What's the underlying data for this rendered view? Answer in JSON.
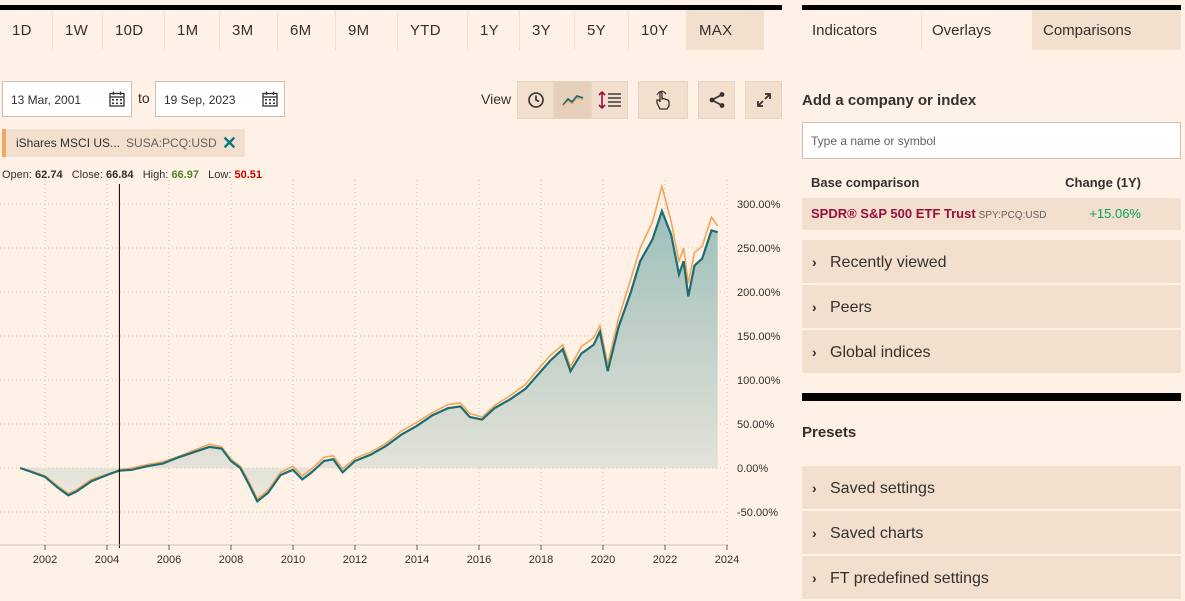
{
  "ranges": [
    {
      "label": "1D"
    },
    {
      "label": "1W"
    },
    {
      "label": "10D"
    },
    {
      "label": "1M"
    },
    {
      "label": "3M"
    },
    {
      "label": "6M"
    },
    {
      "label": "9M"
    },
    {
      "label": "YTD"
    },
    {
      "label": "1Y"
    },
    {
      "label": "3Y"
    },
    {
      "label": "5Y"
    },
    {
      "label": "10Y"
    },
    {
      "label": "MAX"
    }
  ],
  "active_range": "MAX",
  "side_tabs": [
    {
      "label": "Indicators"
    },
    {
      "label": "Overlays"
    },
    {
      "label": "Comparisons"
    }
  ],
  "date_from": "13 Mar, 2001",
  "date_to_label": "to",
  "date_to": "19 Sep, 2023",
  "view_label": "View",
  "chip": {
    "name": "iShares MSCI US...",
    "symbol": "SUSA:PCQ:USD",
    "remove_icon": "close-icon"
  },
  "ohlc": {
    "open_label": "Open:",
    "open": "62.74",
    "close_label": "Close:",
    "close": "66.84",
    "high_label": "High:",
    "high": "66.97",
    "low_label": "Low:",
    "low": "50.51"
  },
  "colors": {
    "primary_series": "#1d6d72",
    "comparison_series": "#f2a65a",
    "high": "#4b8a2a",
    "low": "#cc0000",
    "accent": "#990f3d",
    "positive": "#09a25c"
  },
  "comparisons": {
    "title": "Add a company or index",
    "search_placeholder": "Type a name or symbol",
    "col_base": "Base comparison",
    "col_change": "Change (1Y)",
    "base": {
      "name": "SPDR® S&P 500 ETF Trust",
      "symbol": "SPY:PCQ:USD",
      "change": "+15.06%"
    },
    "sections": [
      {
        "label": "Recently viewed"
      },
      {
        "label": "Peers"
      },
      {
        "label": "Global indices"
      }
    ]
  },
  "presets": {
    "title": "Presets",
    "items": [
      {
        "label": "Saved settings"
      },
      {
        "label": "Saved charts"
      },
      {
        "label": "FT predefined settings"
      }
    ]
  },
  "chart_data": {
    "type": "line",
    "x_ticks": [
      "2002",
      "2004",
      "2006",
      "2008",
      "2010",
      "2012",
      "2014",
      "2016",
      "2018",
      "2020",
      "2022",
      "2024"
    ],
    "y_ticks": [
      "300.00%",
      "250.00%",
      "200.00%",
      "150.00%",
      "100.00%",
      "50.00%",
      "0.00%",
      "-50.00%"
    ],
    "ylim": [
      -60,
      320
    ],
    "xlim": [
      2001.2,
      2024.3
    ],
    "cursor_x": 2004.4,
    "series": [
      {
        "name": "iShares MSCI US...",
        "values": [
          [
            2001.2,
            0
          ],
          [
            2001.6,
            -5
          ],
          [
            2002.0,
            -10
          ],
          [
            2002.4,
            -22
          ],
          [
            2002.75,
            -31
          ],
          [
            2003.0,
            -27
          ],
          [
            2003.5,
            -15
          ],
          [
            2004.0,
            -8
          ],
          [
            2004.4,
            -3
          ],
          [
            2004.8,
            -2
          ],
          [
            2005.3,
            2
          ],
          [
            2005.8,
            5
          ],
          [
            2006.3,
            12
          ],
          [
            2006.8,
            18
          ],
          [
            2007.3,
            24
          ],
          [
            2007.7,
            22
          ],
          [
            2008.0,
            8
          ],
          [
            2008.3,
            0
          ],
          [
            2008.6,
            -20
          ],
          [
            2008.85,
            -38
          ],
          [
            2009.2,
            -28
          ],
          [
            2009.6,
            -8
          ],
          [
            2010.0,
            -2
          ],
          [
            2010.3,
            -13
          ],
          [
            2010.6,
            -5
          ],
          [
            2011.0,
            8
          ],
          [
            2011.3,
            10
          ],
          [
            2011.6,
            -5
          ],
          [
            2012.0,
            8
          ],
          [
            2012.5,
            15
          ],
          [
            2013.0,
            25
          ],
          [
            2013.5,
            38
          ],
          [
            2014.0,
            48
          ],
          [
            2014.5,
            60
          ],
          [
            2015.0,
            68
          ],
          [
            2015.4,
            70
          ],
          [
            2015.7,
            58
          ],
          [
            2016.1,
            55
          ],
          [
            2016.5,
            68
          ],
          [
            2017.0,
            78
          ],
          [
            2017.5,
            90
          ],
          [
            2018.0,
            110
          ],
          [
            2018.3,
            122
          ],
          [
            2018.7,
            135
          ],
          [
            2018.95,
            110
          ],
          [
            2019.3,
            130
          ],
          [
            2019.7,
            140
          ],
          [
            2019.9,
            155
          ],
          [
            2020.15,
            110
          ],
          [
            2020.5,
            160
          ],
          [
            2020.9,
            200
          ],
          [
            2021.2,
            235
          ],
          [
            2021.6,
            260
          ],
          [
            2021.9,
            292
          ],
          [
            2022.2,
            265
          ],
          [
            2022.45,
            220
          ],
          [
            2022.6,
            235
          ],
          [
            2022.75,
            195
          ],
          [
            2022.95,
            230
          ],
          [
            2023.2,
            238
          ],
          [
            2023.5,
            270
          ],
          [
            2023.7,
            268
          ]
        ]
      },
      {
        "name": "SPDR® S&P 500 ETF Trust",
        "values": [
          [
            2001.2,
            0
          ],
          [
            2001.6,
            -4
          ],
          [
            2002.0,
            -9
          ],
          [
            2002.4,
            -20
          ],
          [
            2002.75,
            -29
          ],
          [
            2003.0,
            -25
          ],
          [
            2003.5,
            -13
          ],
          [
            2004.0,
            -7
          ],
          [
            2004.4,
            -2
          ],
          [
            2004.8,
            0
          ],
          [
            2005.3,
            4
          ],
          [
            2005.8,
            7
          ],
          [
            2006.3,
            13
          ],
          [
            2006.8,
            20
          ],
          [
            2007.3,
            27
          ],
          [
            2007.7,
            24
          ],
          [
            2008.0,
            10
          ],
          [
            2008.3,
            2
          ],
          [
            2008.6,
            -17
          ],
          [
            2008.85,
            -35
          ],
          [
            2009.2,
            -25
          ],
          [
            2009.6,
            -5
          ],
          [
            2010.0,
            2
          ],
          [
            2010.3,
            -9
          ],
          [
            2010.6,
            -1
          ],
          [
            2011.0,
            12
          ],
          [
            2011.3,
            14
          ],
          [
            2011.6,
            -1
          ],
          [
            2012.0,
            11
          ],
          [
            2012.5,
            18
          ],
          [
            2013.0,
            28
          ],
          [
            2013.5,
            42
          ],
          [
            2014.0,
            52
          ],
          [
            2014.5,
            63
          ],
          [
            2015.0,
            72
          ],
          [
            2015.4,
            74
          ],
          [
            2015.7,
            62
          ],
          [
            2016.1,
            58
          ],
          [
            2016.5,
            71
          ],
          [
            2017.0,
            82
          ],
          [
            2017.5,
            95
          ],
          [
            2018.0,
            116
          ],
          [
            2018.3,
            128
          ],
          [
            2018.7,
            140
          ],
          [
            2018.95,
            115
          ],
          [
            2019.3,
            138
          ],
          [
            2019.7,
            148
          ],
          [
            2019.9,
            162
          ],
          [
            2020.15,
            118
          ],
          [
            2020.5,
            170
          ],
          [
            2020.9,
            215
          ],
          [
            2021.2,
            250
          ],
          [
            2021.6,
            280
          ],
          [
            2021.9,
            320
          ],
          [
            2022.2,
            280
          ],
          [
            2022.45,
            235
          ],
          [
            2022.6,
            250
          ],
          [
            2022.75,
            210
          ],
          [
            2022.95,
            245
          ],
          [
            2023.2,
            252
          ],
          [
            2023.5,
            285
          ],
          [
            2023.7,
            275
          ]
        ]
      }
    ]
  }
}
